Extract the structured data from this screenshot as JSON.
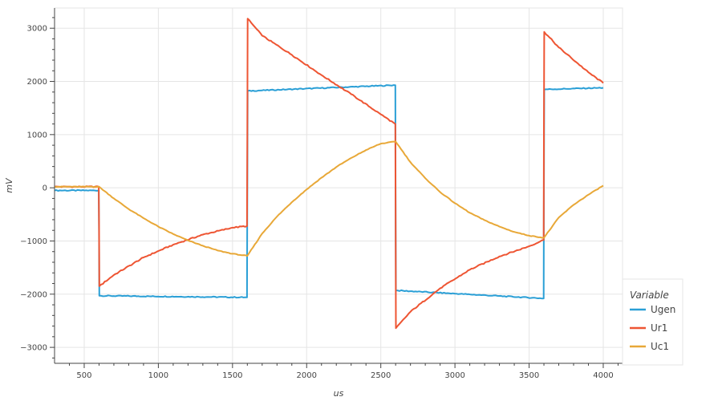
{
  "chart_data": {
    "type": "line",
    "title": "",
    "xlabel": "us",
    "ylabel": "mV",
    "xlim": [
      300,
      4130
    ],
    "ylim": [
      -3300,
      3380
    ],
    "x_ticks": [
      500,
      1000,
      1500,
      2000,
      2500,
      3000,
      3500,
      4000
    ],
    "y_ticks": [
      -3000,
      -2000,
      -1000,
      0,
      1000,
      2000,
      3000
    ],
    "y_tick_labels": [
      "−3000",
      "−2000",
      "−1000",
      "0",
      "1000",
      "2000",
      "3000"
    ],
    "grid": true,
    "legend": {
      "title": "Variable",
      "position": "bottom-right"
    },
    "series": [
      {
        "name": "Ugen",
        "color": "#2a9fd6",
        "x": [
          300,
          598,
          600,
          602,
          1598,
          1600,
          1602,
          2598,
          2600,
          2602,
          3598,
          3600,
          3602,
          4000
        ],
        "y": [
          -50,
          -50,
          -1000,
          -2030,
          -2060,
          0,
          1820,
          1930,
          -800,
          -1930,
          -2080,
          0,
          1850,
          1880
        ]
      },
      {
        "name": "Ur1",
        "color": "#ee5533",
        "x": [
          300,
          598,
          600,
          602,
          700,
          900,
          1100,
          1300,
          1500,
          1598,
          1600,
          1602,
          1700,
          1900,
          2100,
          2300,
          2500,
          2598,
          2600,
          2602,
          2700,
          2900,
          3100,
          3300,
          3500,
          3598,
          3600,
          3602,
          3700,
          3900,
          4000
        ],
        "y": [
          20,
          20,
          -800,
          -1850,
          -1640,
          -1310,
          -1070,
          -880,
          -750,
          -720,
          1000,
          3180,
          2860,
          2500,
          2120,
          1760,
          1380,
          1200,
          -800,
          -2640,
          -2330,
          -1890,
          -1540,
          -1290,
          -1100,
          -980,
          1000,
          2930,
          2640,
          2170,
          1970
        ]
      },
      {
        "name": "Uc1",
        "color": "#e8a838",
        "x": [
          300,
          600,
          700,
          800,
          900,
          1000,
          1100,
          1200,
          1300,
          1400,
          1500,
          1600,
          1700,
          1800,
          1900,
          2000,
          2100,
          2200,
          2300,
          2400,
          2500,
          2600,
          2700,
          2800,
          2900,
          3000,
          3100,
          3200,
          3300,
          3400,
          3500,
          3600,
          3700,
          3800,
          3900,
          4000
        ],
        "y": [
          20,
          20,
          -200,
          -400,
          -570,
          -730,
          -870,
          -990,
          -1090,
          -1180,
          -1240,
          -1280,
          -860,
          -540,
          -270,
          -30,
          190,
          390,
          560,
          710,
          830,
          870,
          480,
          180,
          -80,
          -290,
          -470,
          -610,
          -730,
          -830,
          -900,
          -940,
          -560,
          -320,
          -130,
          40
        ]
      }
    ]
  }
}
